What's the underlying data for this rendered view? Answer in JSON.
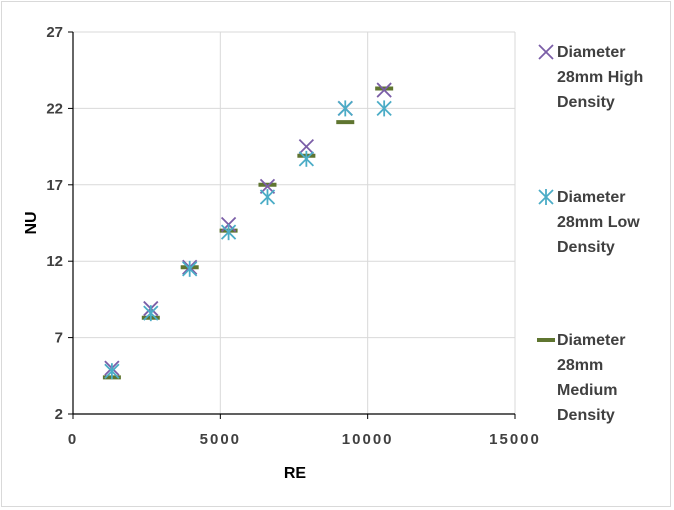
{
  "chart_data": {
    "type": "scatter",
    "title": "",
    "xlabel": "RE",
    "ylabel": "NU",
    "xlim": [
      0,
      15000
    ],
    "ylim": [
      2,
      27
    ],
    "x_ticks": [
      "0",
      "5000",
      "10000",
      "15000"
    ],
    "y_ticks": [
      "2",
      "7",
      "12",
      "17",
      "22",
      "27"
    ],
    "grid": true,
    "legend_position": "right",
    "series": [
      {
        "name": "Diameter 28mm High Density",
        "name_lines": [
          "Diameter",
          "28mm High",
          "Density"
        ],
        "marker": "x",
        "color": "#7b5ea7",
        "points": [
          {
            "x": 1320,
            "y": 5.0
          },
          {
            "x": 2640,
            "y": 8.9
          },
          {
            "x": 3960,
            "y": 11.6
          },
          {
            "x": 5280,
            "y": 14.4
          },
          {
            "x": 6600,
            "y": 16.9
          },
          {
            "x": 7920,
            "y": 19.5
          },
          {
            "x": 9240,
            "y": 22.0
          },
          {
            "x": 10560,
            "y": 23.2
          }
        ]
      },
      {
        "name": "Diameter 28mm Low Density",
        "name_lines": [
          "Diameter",
          "28mm Low",
          "Density"
        ],
        "marker": "asterisk",
        "color": "#4bacc6",
        "points": [
          {
            "x": 1320,
            "y": 4.8
          },
          {
            "x": 2640,
            "y": 8.6
          },
          {
            "x": 3960,
            "y": 11.5
          },
          {
            "x": 5280,
            "y": 13.9
          },
          {
            "x": 6600,
            "y": 16.2
          },
          {
            "x": 7920,
            "y": 18.7
          },
          {
            "x": 9240,
            "y": 22.0
          },
          {
            "x": 10560,
            "y": 22.0
          }
        ]
      },
      {
        "name": "Diameter 28mm Medium Density",
        "name_lines": [
          "Diameter",
          "28mm",
          "Medium",
          "Density"
        ],
        "marker": "dash",
        "color": "#5f7530",
        "points": [
          {
            "x": 1320,
            "y": 4.4
          },
          {
            "x": 2640,
            "y": 8.3
          },
          {
            "x": 3960,
            "y": 11.6
          },
          {
            "x": 5280,
            "y": 14.0
          },
          {
            "x": 6600,
            "y": 17.0
          },
          {
            "x": 7920,
            "y": 18.9
          },
          {
            "x": 9240,
            "y": 21.1
          },
          {
            "x": 10560,
            "y": 23.3
          }
        ]
      }
    ]
  }
}
